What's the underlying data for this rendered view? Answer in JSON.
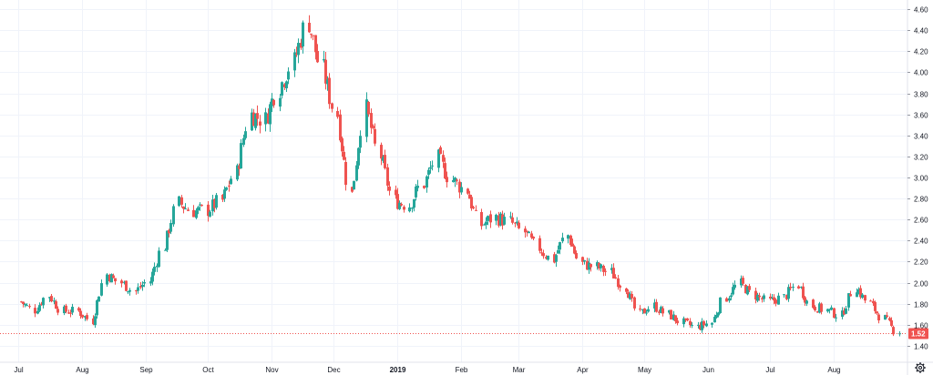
{
  "colors": {
    "up": "#26a69a",
    "down": "#ef5350",
    "grid": "#f0f3fa",
    "axis_text": "#131722",
    "price_line": "#ef5350",
    "price_label_bg": "#ef5350",
    "background": "#ffffff"
  },
  "icons": {
    "settings": "gear-icon"
  },
  "chart_data": {
    "type": "candlestick",
    "title": "",
    "xlabel": "",
    "ylabel": "",
    "ylim": [
      1.31,
      4.65
    ],
    "y_ticks": [
      "1.40",
      "1.60",
      "1.80",
      "2.00",
      "2.20",
      "2.40",
      "2.60",
      "2.80",
      "3.00",
      "3.20",
      "3.40",
      "3.60",
      "3.80",
      "4.00",
      "4.20",
      "4.40",
      "4.60"
    ],
    "x_ticks": [
      "Jul",
      "Aug",
      "Sep",
      "Oct",
      "Nov",
      "Dec",
      "2019",
      "Feb",
      "Mar",
      "Apr",
      "May",
      "Jun",
      "Jul",
      "Aug"
    ],
    "x_ticks_bold": [
      "2019"
    ],
    "grid": true,
    "last_price": "1.52",
    "candles": [
      {
        "date": "2018-07-02",
        "close": 1.82
      },
      {
        "date": "2018-07-09",
        "close": 1.74
      },
      {
        "date": "2018-07-16",
        "close": 1.88
      },
      {
        "date": "2018-07-23",
        "close": 1.73
      },
      {
        "date": "2018-07-30",
        "close": 1.73
      },
      {
        "date": "2018-08-06",
        "close": 1.64
      },
      {
        "date": "2018-08-13",
        "close": 2.08
      },
      {
        "date": "2018-08-20",
        "close": 2.0
      },
      {
        "date": "2018-08-27",
        "close": 1.92
      },
      {
        "date": "2018-09-03",
        "close": 2.02
      },
      {
        "date": "2018-09-10",
        "close": 2.35
      },
      {
        "date": "2018-09-17",
        "close": 2.76
      },
      {
        "date": "2018-09-24",
        "close": 2.68
      },
      {
        "date": "2018-10-01",
        "close": 2.69
      },
      {
        "date": "2018-10-08",
        "close": 2.78
      },
      {
        "date": "2018-10-15",
        "close": 3.05
      },
      {
        "date": "2018-10-22",
        "close": 3.6
      },
      {
        "date": "2018-10-29",
        "close": 3.55
      },
      {
        "date": "2018-11-05",
        "close": 3.85
      },
      {
        "date": "2018-11-12",
        "close": 4.1
      },
      {
        "date": "2018-11-19",
        "close": 4.48
      },
      {
        "date": "2018-11-26",
        "close": 4.02
      },
      {
        "date": "2018-12-03",
        "close": 3.6
      },
      {
        "date": "2018-12-10",
        "close": 2.84
      },
      {
        "date": "2018-12-17",
        "close": 3.65
      },
      {
        "date": "2018-12-24",
        "close": 3.2
      },
      {
        "date": "2018-12-31",
        "close": 2.78
      },
      {
        "date": "2019-01-07",
        "close": 2.74
      },
      {
        "date": "2019-01-14",
        "close": 2.94
      },
      {
        "date": "2019-01-21",
        "close": 3.18
      },
      {
        "date": "2019-01-28",
        "close": 2.98
      },
      {
        "date": "2019-02-04",
        "close": 2.88
      },
      {
        "date": "2019-02-11",
        "close": 2.55
      },
      {
        "date": "2019-02-18",
        "close": 2.62
      },
      {
        "date": "2019-02-25",
        "close": 2.58
      },
      {
        "date": "2019-03-04",
        "close": 2.48
      },
      {
        "date": "2019-03-11",
        "close": 2.33
      },
      {
        "date": "2019-03-18",
        "close": 2.22
      },
      {
        "date": "2019-03-25",
        "close": 2.45
      },
      {
        "date": "2019-04-01",
        "close": 2.18
      },
      {
        "date": "2019-04-08",
        "close": 2.15
      },
      {
        "date": "2019-04-15",
        "close": 2.1
      },
      {
        "date": "2019-04-22",
        "close": 1.96
      },
      {
        "date": "2019-04-29",
        "close": 1.7
      },
      {
        "date": "2019-05-06",
        "close": 1.78
      },
      {
        "date": "2019-05-13",
        "close": 1.7
      },
      {
        "date": "2019-05-20",
        "close": 1.62
      },
      {
        "date": "2019-05-27",
        "close": 1.58
      },
      {
        "date": "2019-06-03",
        "close": 1.62
      },
      {
        "date": "2019-06-10",
        "close": 1.86
      },
      {
        "date": "2019-06-17",
        "close": 1.99
      },
      {
        "date": "2019-06-24",
        "close": 1.88
      },
      {
        "date": "2019-07-01",
        "close": 1.82
      },
      {
        "date": "2019-07-08",
        "close": 1.86
      },
      {
        "date": "2019-07-15",
        "close": 1.98
      },
      {
        "date": "2019-07-22",
        "close": 1.78
      },
      {
        "date": "2019-07-29",
        "close": 1.74
      },
      {
        "date": "2019-08-05",
        "close": 1.69
      },
      {
        "date": "2019-08-12",
        "close": 1.96
      },
      {
        "date": "2019-08-19",
        "close": 1.8
      },
      {
        "date": "2019-08-26",
        "close": 1.66
      },
      {
        "date": "2019-09-02",
        "close": 1.52
      }
    ]
  }
}
